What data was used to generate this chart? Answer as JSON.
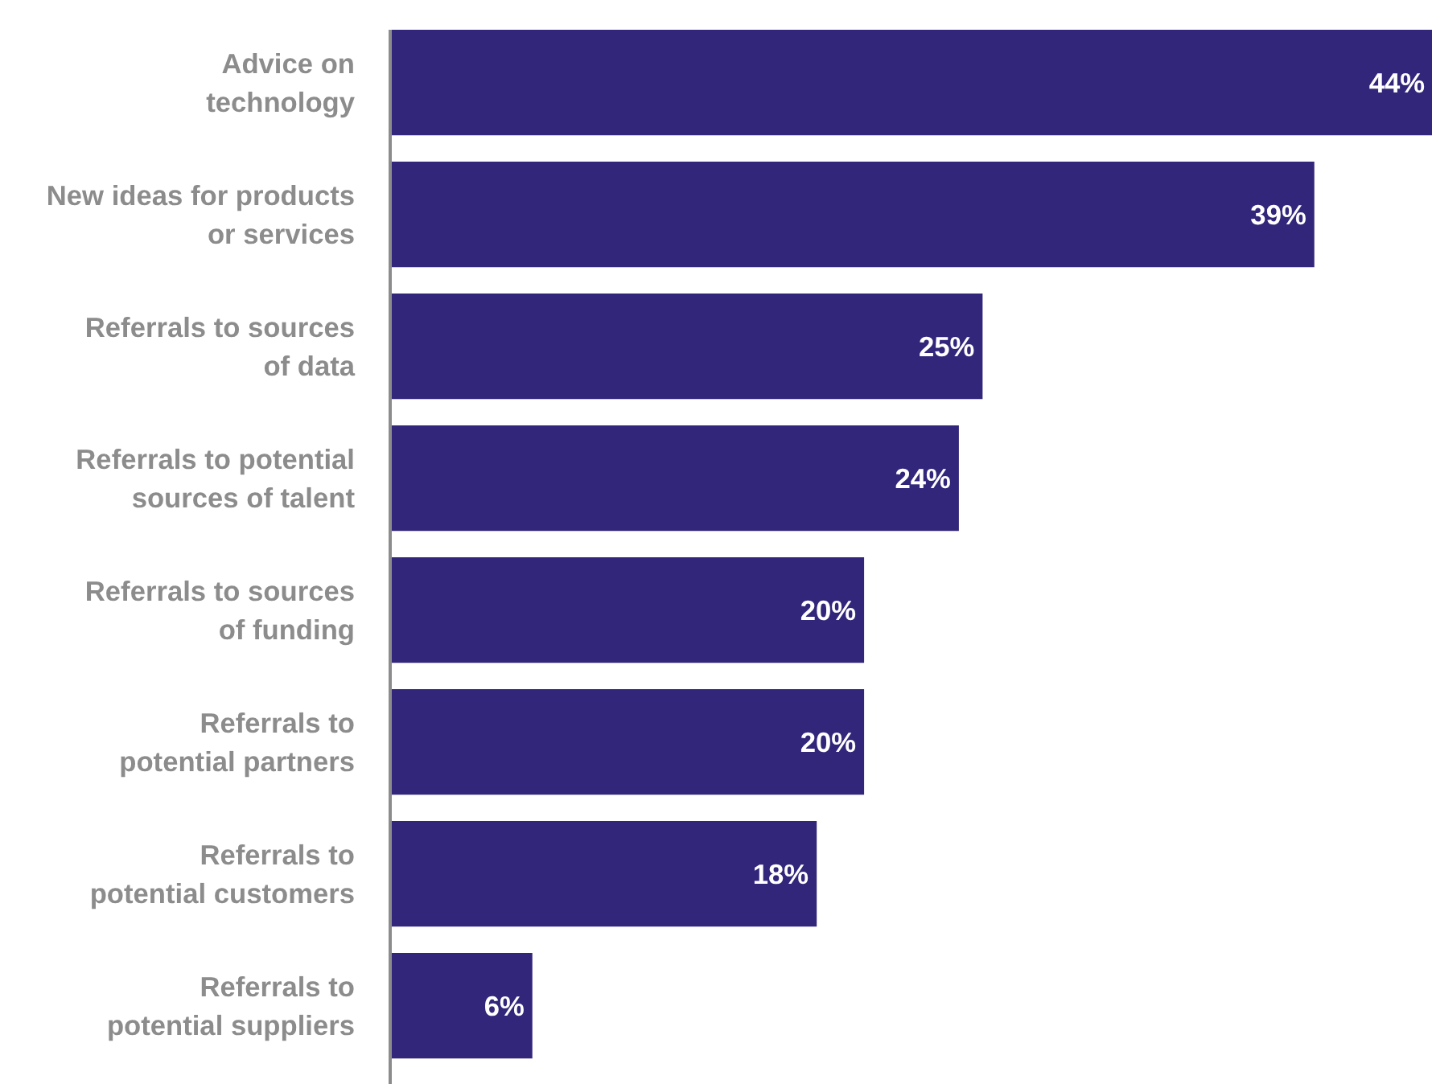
{
  "chart_data": {
    "type": "bar",
    "orientation": "horizontal",
    "categories": [
      "Advice on\ntechnology",
      "New ideas for products\nor services",
      "Referrals to sources\nof data",
      "Referrals to potential\nsources of talent",
      "Referrals to sources\nof funding",
      "Referrals to\npotential partners",
      "Referrals to\npotential customers",
      "Referrals to\npotential suppliers"
    ],
    "values": [
      44,
      39,
      25,
      24,
      20,
      20,
      18,
      6
    ],
    "value_labels": [
      "44%",
      "39%",
      "25%",
      "24%",
      "20%",
      "20%",
      "18%",
      "6%"
    ],
    "color": "#31267a",
    "grid": false
  }
}
